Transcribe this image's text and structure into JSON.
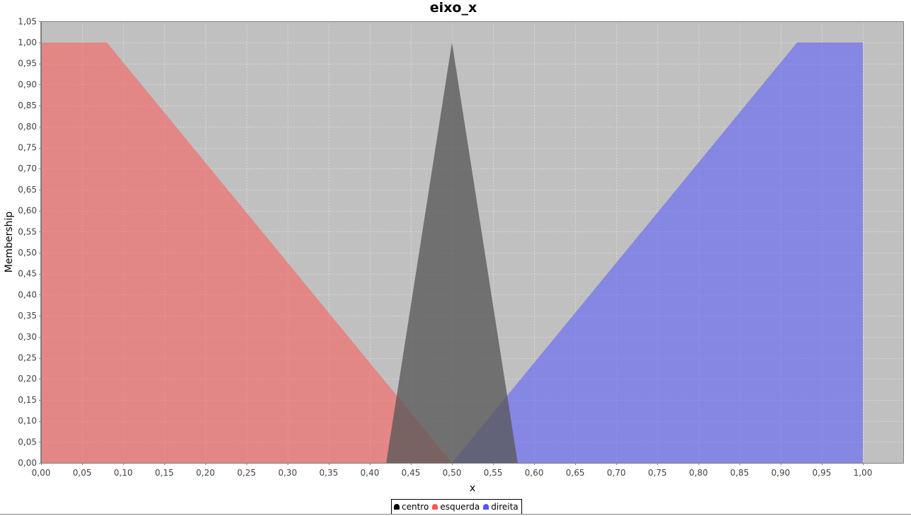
{
  "chart_data": {
    "type": "area",
    "title": "eixo_x",
    "xlabel": "x",
    "ylabel": "Membership",
    "xlim": [
      0.0,
      1.05
    ],
    "ylim": [
      0.0,
      1.05
    ],
    "x_ticks": [
      "0,00",
      "0,05",
      "0,10",
      "0,15",
      "0,20",
      "0,25",
      "0,30",
      "0,35",
      "0,40",
      "0,45",
      "0,50",
      "0,55",
      "0,60",
      "0,65",
      "0,70",
      "0,75",
      "0,80",
      "0,85",
      "0,90",
      "0,95",
      "1,00"
    ],
    "y_ticks": [
      "0,00",
      "0,05",
      "0,10",
      "0,15",
      "0,20",
      "0,25",
      "0,30",
      "0,35",
      "0,40",
      "0,45",
      "0,50",
      "0,55",
      "0,60",
      "0,65",
      "0,70",
      "0,75",
      "0,80",
      "0,85",
      "0,90",
      "0,95",
      "1,00",
      "1,05"
    ],
    "grid": true,
    "legend_position": "bottom-center",
    "series": [
      {
        "name": "centro",
        "color": "#555555",
        "points": [
          [
            0.42,
            0.0
          ],
          [
            0.5,
            1.0
          ],
          [
            0.58,
            0.0
          ]
        ]
      },
      {
        "name": "esquerda",
        "color": "#ff5555",
        "points": [
          [
            0.0,
            0.0
          ],
          [
            0.0,
            1.0
          ],
          [
            0.08,
            1.0
          ],
          [
            0.5,
            0.0
          ]
        ]
      },
      {
        "name": "direita",
        "color": "#5555ff",
        "points": [
          [
            0.5,
            0.0
          ],
          [
            0.92,
            1.0
          ],
          [
            1.0,
            1.0
          ],
          [
            1.0,
            0.0
          ]
        ]
      }
    ]
  },
  "colors": {
    "plot_background": "#c0c0c0",
    "gridline": "#d8d8d8"
  }
}
